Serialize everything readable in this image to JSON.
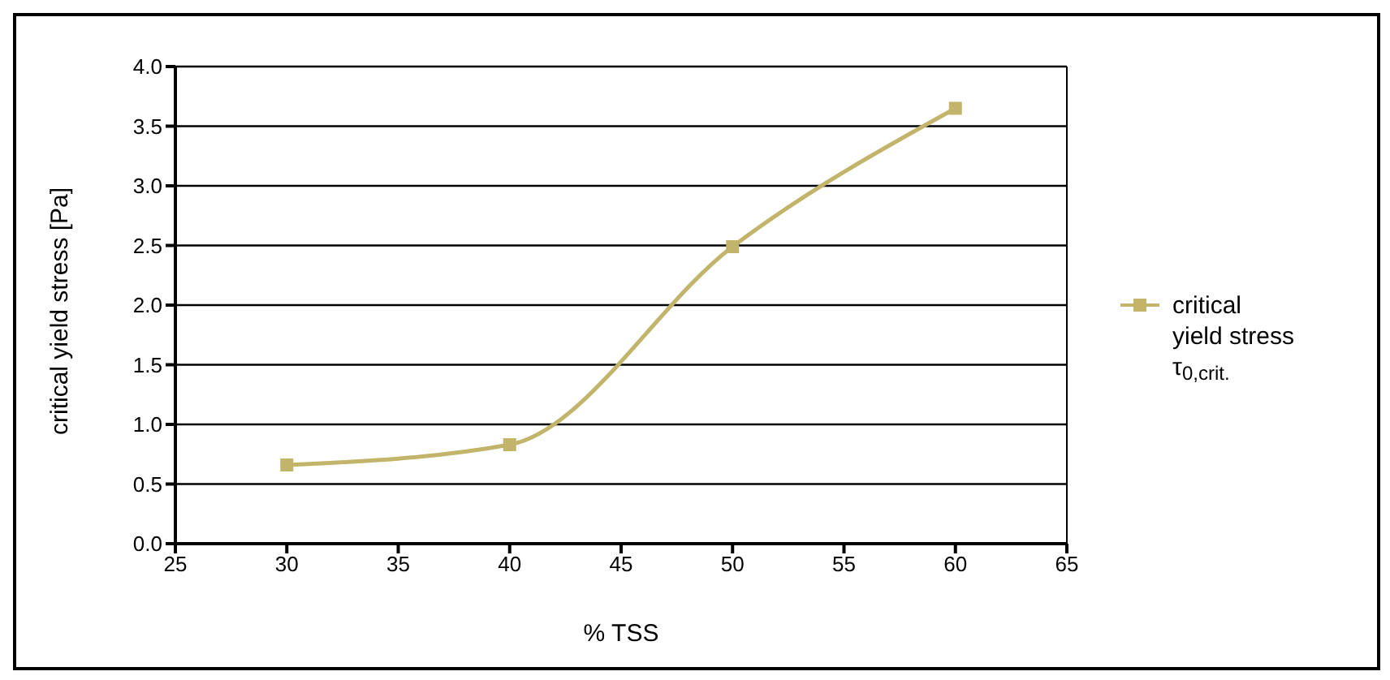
{
  "chart_data": {
    "type": "line",
    "xlabel": "% TSS",
    "ylabel": "critical yield stress [Pa]",
    "x": [
      30,
      40,
      50,
      60
    ],
    "series": [
      {
        "name": "critical\nyield stress\nτ$_{0,crit.}$",
        "color": "#c2b46a",
        "values": [
          0.66,
          0.83,
          2.49,
          3.65
        ]
      }
    ],
    "xlim": [
      25,
      65
    ],
    "xticks": [
      25,
      30,
      35,
      40,
      45,
      50,
      55,
      60,
      65
    ],
    "ylim": [
      0,
      4
    ],
    "yticks": [
      {
        "value": 0,
        "label": "0.0"
      },
      0.5,
      {
        "value": 1,
        "label": "1.0"
      },
      1.5,
      {
        "value": 2,
        "label": "2.0"
      },
      2.5,
      {
        "value": 3,
        "label": "3.0"
      },
      3.5,
      {
        "value": 4,
        "label": "4.0"
      }
    ],
    "grid": "y",
    "legend": "right",
    "marker": "square"
  }
}
